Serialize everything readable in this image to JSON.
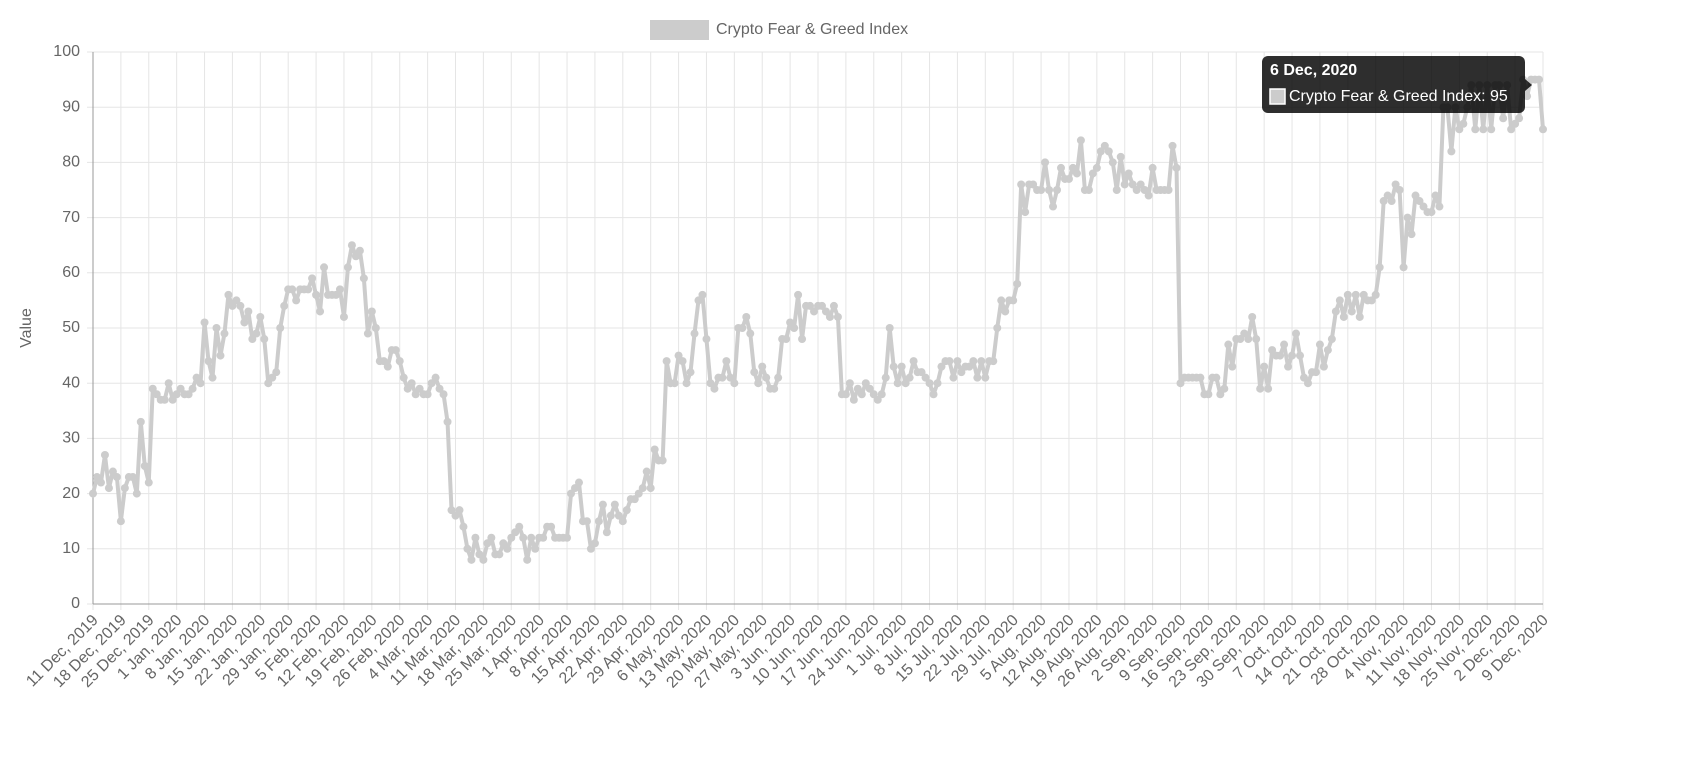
{
  "chart_data": {
    "type": "line",
    "y_label": "Value",
    "legend": "top",
    "grid": true,
    "ylim": [
      0,
      100
    ],
    "yticks": [
      0,
      10,
      20,
      30,
      40,
      50,
      60,
      70,
      80,
      90,
      100
    ],
    "categories": [
      "11 Dec, 2019",
      null,
      null,
      null,
      null,
      null,
      null,
      "18 Dec, 2019",
      null,
      null,
      null,
      null,
      null,
      null,
      "25 Dec, 2019",
      null,
      null,
      null,
      null,
      null,
      null,
      "1 Jan, 2020",
      null,
      null,
      null,
      null,
      null,
      null,
      "8 Jan, 2020",
      null,
      null,
      null,
      null,
      null,
      null,
      "15 Jan, 2020",
      null,
      null,
      null,
      null,
      null,
      null,
      "22 Jan, 2020",
      null,
      null,
      null,
      null,
      null,
      null,
      "29 Jan, 2020",
      null,
      null,
      null,
      null,
      null,
      null,
      "5 Feb, 2020",
      null,
      null,
      null,
      null,
      null,
      null,
      "12 Feb, 2020",
      null,
      null,
      null,
      null,
      null,
      null,
      "19 Feb, 2020",
      null,
      null,
      null,
      null,
      null,
      null,
      "26 Feb, 2020",
      null,
      null,
      null,
      null,
      null,
      null,
      "4 Mar, 2020",
      null,
      null,
      null,
      null,
      null,
      null,
      "11 Mar, 2020",
      null,
      null,
      null,
      null,
      null,
      null,
      "18 Mar, 2020",
      null,
      null,
      null,
      null,
      null,
      null,
      "25 Mar, 2020",
      null,
      null,
      null,
      null,
      null,
      null,
      "1 Apr, 2020",
      null,
      null,
      null,
      null,
      null,
      null,
      "8 Apr, 2020",
      null,
      null,
      null,
      null,
      null,
      null,
      "15 Apr, 2020",
      null,
      null,
      null,
      null,
      null,
      null,
      "22 Apr, 2020",
      null,
      null,
      null,
      null,
      null,
      null,
      "29 Apr, 2020",
      null,
      null,
      null,
      null,
      null,
      null,
      "6 May, 2020",
      null,
      null,
      null,
      null,
      null,
      null,
      "13 May, 2020",
      null,
      null,
      null,
      null,
      null,
      null,
      "20 May, 2020",
      null,
      null,
      null,
      null,
      null,
      null,
      "27 May, 2020",
      null,
      null,
      null,
      null,
      null,
      null,
      "3 Jun, 2020",
      null,
      null,
      null,
      null,
      null,
      null,
      "10 Jun, 2020",
      null,
      null,
      null,
      null,
      null,
      null,
      "17 Jun, 2020",
      null,
      null,
      null,
      null,
      null,
      null,
      "24 Jun, 2020",
      null,
      null,
      null,
      null,
      null,
      null,
      "1 Jul, 2020",
      null,
      null,
      null,
      null,
      null,
      null,
      "8 Jul, 2020",
      null,
      null,
      null,
      null,
      null,
      null,
      "15 Jul, 2020",
      null,
      null,
      null,
      null,
      null,
      null,
      "22 Jul, 2020",
      null,
      null,
      null,
      null,
      null,
      null,
      "29 Jul, 2020",
      null,
      null,
      null,
      null,
      null,
      null,
      "5 Aug, 2020",
      null,
      null,
      null,
      null,
      null,
      null,
      "12 Aug, 2020",
      null,
      null,
      null,
      null,
      null,
      null,
      "19 Aug, 2020",
      null,
      null,
      null,
      null,
      null,
      null,
      "26 Aug, 2020",
      null,
      null,
      null,
      null,
      null,
      null,
      "2 Sep, 2020",
      null,
      null,
      null,
      null,
      null,
      null,
      "9 Sep, 2020",
      null,
      null,
      null,
      null,
      null,
      null,
      "16 Sep, 2020",
      null,
      null,
      null,
      null,
      null,
      null,
      "23 Sep, 2020",
      null,
      null,
      null,
      null,
      null,
      null,
      "30 Sep, 2020",
      null,
      null,
      null,
      null,
      null,
      null,
      "7 Oct, 2020",
      null,
      null,
      null,
      null,
      null,
      null,
      "14 Oct, 2020",
      null,
      null,
      null,
      null,
      null,
      null,
      "21 Oct, 2020",
      null,
      null,
      null,
      null,
      null,
      null,
      "28 Oct, 2020",
      null,
      null,
      null,
      null,
      null,
      null,
      "4 Nov, 2020",
      null,
      null,
      null,
      null,
      null,
      null,
      "11 Nov, 2020",
      null,
      null,
      null,
      null,
      null,
      null,
      "18 Nov, 2020",
      null,
      null,
      null,
      null,
      null,
      null,
      "25 Nov, 2020",
      null,
      null,
      null,
      null,
      null,
      null,
      "2 Dec, 2020",
      null,
      null,
      null,
      null,
      null,
      null,
      "9 Dec, 2020"
    ],
    "series": [
      {
        "name": "Crypto Fear & Greed Index",
        "color": "#cccccc",
        "values": [
          20,
          23,
          22,
          27,
          21,
          24,
          23,
          15,
          21,
          23,
          23,
          20,
          33,
          25,
          22,
          39,
          38,
          37,
          37,
          40,
          37,
          38,
          39,
          38,
          38,
          39,
          41,
          40,
          51,
          44,
          41,
          50,
          45,
          49,
          56,
          54,
          55,
          54,
          51,
          53,
          48,
          49,
          52,
          48,
          40,
          41,
          42,
          50,
          54,
          57,
          57,
          55,
          57,
          57,
          57,
          59,
          56,
          53,
          61,
          56,
          56,
          56,
          57,
          52,
          61,
          65,
          63,
          64,
          59,
          49,
          53,
          50,
          44,
          44,
          43,
          46,
          46,
          44,
          41,
          39,
          40,
          38,
          39,
          38,
          38,
          40,
          41,
          39,
          38,
          33,
          17,
          16,
          17,
          14,
          10,
          8,
          12,
          9,
          8,
          11,
          12,
          9,
          9,
          11,
          10,
          12,
          13,
          14,
          12,
          8,
          12,
          10,
          12,
          12,
          14,
          14,
          12,
          12,
          12,
          12,
          20,
          21,
          22,
          15,
          15,
          10,
          11,
          15,
          18,
          13,
          16,
          18,
          16,
          15,
          17,
          19,
          19,
          20,
          21,
          24,
          21,
          28,
          26,
          26,
          44,
          40,
          40,
          45,
          44,
          40,
          42,
          49,
          55,
          56,
          48,
          40,
          39,
          41,
          41,
          44,
          41,
          40,
          50,
          50,
          52,
          49,
          42,
          40,
          43,
          41,
          39,
          39,
          41,
          48,
          48,
          51,
          50,
          56,
          48,
          54,
          54,
          53,
          54,
          54,
          53,
          52,
          54,
          52,
          38,
          38,
          40,
          37,
          39,
          38,
          40,
          39,
          38,
          37,
          38,
          41,
          50,
          43,
          40,
          43,
          40,
          41,
          44,
          42,
          42,
          41,
          40,
          38,
          40,
          43,
          44,
          44,
          41,
          44,
          42,
          43,
          43,
          44,
          41,
          44,
          41,
          44,
          44,
          50,
          55,
          53,
          55,
          55,
          58,
          76,
          71,
          76,
          76,
          75,
          75,
          80,
          75,
          72,
          75,
          79,
          77,
          77,
          79,
          78,
          84,
          75,
          75,
          78,
          79,
          82,
          83,
          82,
          80,
          75,
          81,
          76,
          78,
          76,
          75,
          76,
          75,
          74,
          79,
          75,
          75,
          75,
          75,
          83,
          79,
          40,
          41,
          41,
          41,
          41,
          41,
          38,
          38,
          41,
          41,
          38,
          39,
          47,
          43,
          48,
          48,
          49,
          48,
          52,
          48,
          39,
          43,
          39,
          46,
          45,
          45,
          47,
          43,
          45,
          49,
          45,
          41,
          40,
          42,
          42,
          47,
          43,
          46,
          48,
          53,
          55,
          52,
          56,
          53,
          56,
          52,
          56,
          55,
          55,
          56,
          61,
          73,
          74,
          73,
          76,
          75,
          61,
          70,
          67,
          74,
          73,
          72,
          71,
          71,
          74,
          72,
          90,
          90,
          82,
          90,
          86,
          87,
          90,
          94,
          86,
          94,
          86,
          94,
          86,
          94,
          94,
          88,
          94,
          86,
          87,
          88,
          95,
          92,
          95,
          95,
          95,
          86
        ]
      }
    ],
    "tooltip": {
      "title": "6 Dec, 2020",
      "label": "Crypto Fear & Greed Index: 95"
    }
  }
}
